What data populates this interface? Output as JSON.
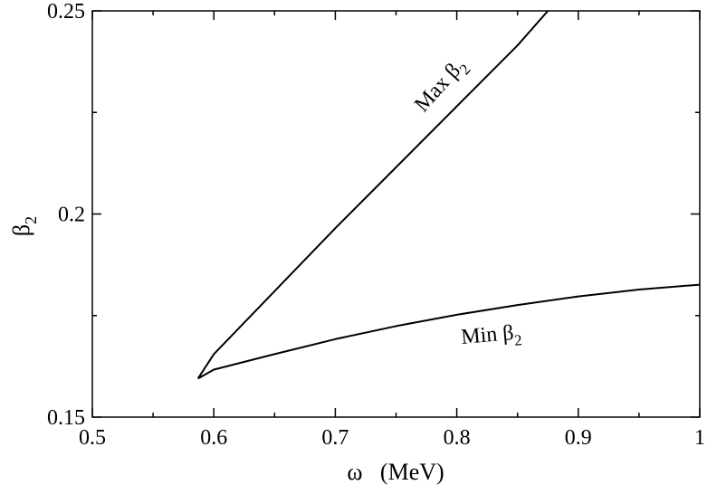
{
  "chart_data": {
    "type": "line",
    "xlabel": "ω   (MeV)",
    "ylabel_main": "β",
    "ylabel_sub": "2",
    "xlim": [
      0.5,
      1.0
    ],
    "ylim": [
      0.15,
      0.25
    ],
    "xticks": [
      0.5,
      0.6,
      0.7,
      0.8,
      0.9,
      1.0
    ],
    "xtick_labels": [
      "0.5",
      "0.6",
      "0.7",
      "0.8",
      "0.9",
      "1"
    ],
    "yticks": [
      0.15,
      0.2,
      0.25
    ],
    "ytick_labels": [
      "0.15",
      "0.2",
      "0.25"
    ],
    "grid": false,
    "legend": "none",
    "series": [
      {
        "name": "Max β2",
        "label_main": "Max β",
        "label_sub": "2",
        "x": [
          0.587,
          0.6,
          0.65,
          0.7,
          0.75,
          0.8,
          0.85,
          0.875
        ],
        "y": [
          0.1595,
          0.1655,
          0.181,
          0.1965,
          0.2115,
          0.2265,
          0.2415,
          0.25
        ]
      },
      {
        "name": "Min β2",
        "label_main": "Min β",
        "label_sub": "2",
        "x": [
          0.587,
          0.6,
          0.65,
          0.7,
          0.75,
          0.8,
          0.85,
          0.9,
          0.95,
          1.0
        ],
        "y": [
          0.1595,
          0.1617,
          0.1655,
          0.1692,
          0.1724,
          0.1752,
          0.1776,
          0.1797,
          0.1814,
          0.1826
        ]
      }
    ]
  }
}
